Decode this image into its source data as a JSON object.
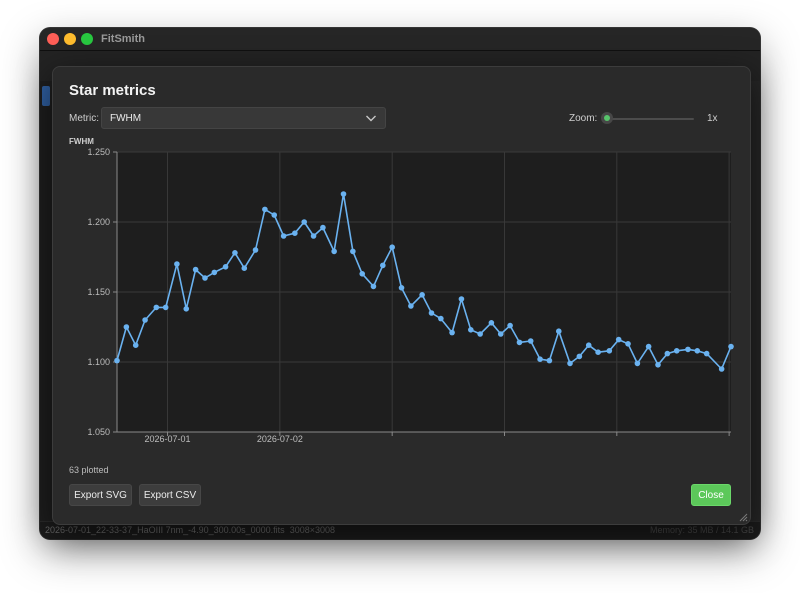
{
  "window": {
    "title": "FitSmith"
  },
  "statusbar": {
    "filename": "2026-07-01_22-33-37_HaOIII 7nm_-4.90_300.00s_0000.fits",
    "dimensions": "3008×3008",
    "memory": "Memory: 35 MB / 14.1 GB"
  },
  "dialog": {
    "title": "Star metrics",
    "metric_label": "Metric:",
    "metric_value": "FWHM",
    "zoom_label": "Zoom:",
    "zoom_value": "1x",
    "zoom_level": 0,
    "plotted_text": "63 plotted",
    "export_svg_label": "Export SVG",
    "export_csv_label": "Export CSV",
    "close_label": "Close"
  },
  "chart_data": {
    "type": "line",
    "ylabel": "FWHM",
    "ylim": [
      1.05,
      1.25
    ],
    "yticks": [
      "1.050",
      "1.100",
      "1.150",
      "1.200",
      "1.250"
    ],
    "xlim": [
      "2026-07-01 22:33",
      "2026-07-02 04:01"
    ],
    "xticks": [
      {
        "date": "2026-07-01",
        "time": "23:00"
      },
      {
        "date": "2026-07-02",
        "time": "00:00"
      },
      {
        "date": "",
        "time": "01:00"
      },
      {
        "date": "",
        "time": "02:00"
      },
      {
        "date": "",
        "time": "03:00"
      },
      {
        "date": "",
        "time": "04:00"
      }
    ],
    "grid": true,
    "color": "#6ab2f0",
    "series": [
      {
        "x": [
          "2026-07-01 22:33",
          "2026-07-01 22:38",
          "2026-07-01 22:43",
          "2026-07-01 22:48",
          "2026-07-01 22:54",
          "2026-07-01 22:59",
          "2026-07-01 23:05",
          "2026-07-01 23:10",
          "2026-07-01 23:15",
          "2026-07-01 23:20",
          "2026-07-01 23:25",
          "2026-07-01 23:31",
          "2026-07-01 23:36",
          "2026-07-01 23:41",
          "2026-07-01 23:47",
          "2026-07-01 23:52",
          "2026-07-01 23:57",
          "2026-07-02 00:02",
          "2026-07-02 00:08",
          "2026-07-02 00:13",
          "2026-07-02 00:18",
          "2026-07-02 00:23",
          "2026-07-02 00:29",
          "2026-07-02 00:34",
          "2026-07-02 00:39",
          "2026-07-02 00:44",
          "2026-07-02 00:50",
          "2026-07-02 00:55",
          "2026-07-02 01:00",
          "2026-07-02 01:05",
          "2026-07-02 01:10",
          "2026-07-02 01:16",
          "2026-07-02 01:21",
          "2026-07-02 01:26",
          "2026-07-02 01:32",
          "2026-07-02 01:37",
          "2026-07-02 01:42",
          "2026-07-02 01:47",
          "2026-07-02 01:53",
          "2026-07-02 01:58",
          "2026-07-02 02:03",
          "2026-07-02 02:08",
          "2026-07-02 02:14",
          "2026-07-02 02:19",
          "2026-07-02 02:24",
          "2026-07-02 02:29",
          "2026-07-02 02:35",
          "2026-07-02 02:40",
          "2026-07-02 02:45",
          "2026-07-02 02:50",
          "2026-07-02 02:56",
          "2026-07-02 03:01",
          "2026-07-02 03:06",
          "2026-07-02 03:11",
          "2026-07-02 03:17",
          "2026-07-02 03:22",
          "2026-07-02 03:27",
          "2026-07-02 03:32",
          "2026-07-02 03:38",
          "2026-07-02 03:43",
          "2026-07-02 03:48",
          "2026-07-02 03:56",
          "2026-07-02 04:01"
        ],
        "y": [
          1.101,
          1.125,
          1.112,
          1.13,
          1.139,
          1.139,
          1.17,
          1.138,
          1.166,
          1.16,
          1.164,
          1.168,
          1.178,
          1.167,
          1.18,
          1.209,
          1.205,
          1.19,
          1.192,
          1.2,
          1.19,
          1.196,
          1.179,
          1.22,
          1.179,
          1.163,
          1.154,
          1.169,
          1.182,
          1.153,
          1.14,
          1.148,
          1.135,
          1.131,
          1.121,
          1.145,
          1.123,
          1.12,
          1.128,
          1.12,
          1.126,
          1.114,
          1.115,
          1.102,
          1.101,
          1.122,
          1.099,
          1.104,
          1.112,
          1.107,
          1.108,
          1.116,
          1.113,
          1.099,
          1.111,
          1.098,
          1.106,
          1.108,
          1.109,
          1.108,
          1.106,
          1.095,
          1.111
        ]
      }
    ]
  }
}
